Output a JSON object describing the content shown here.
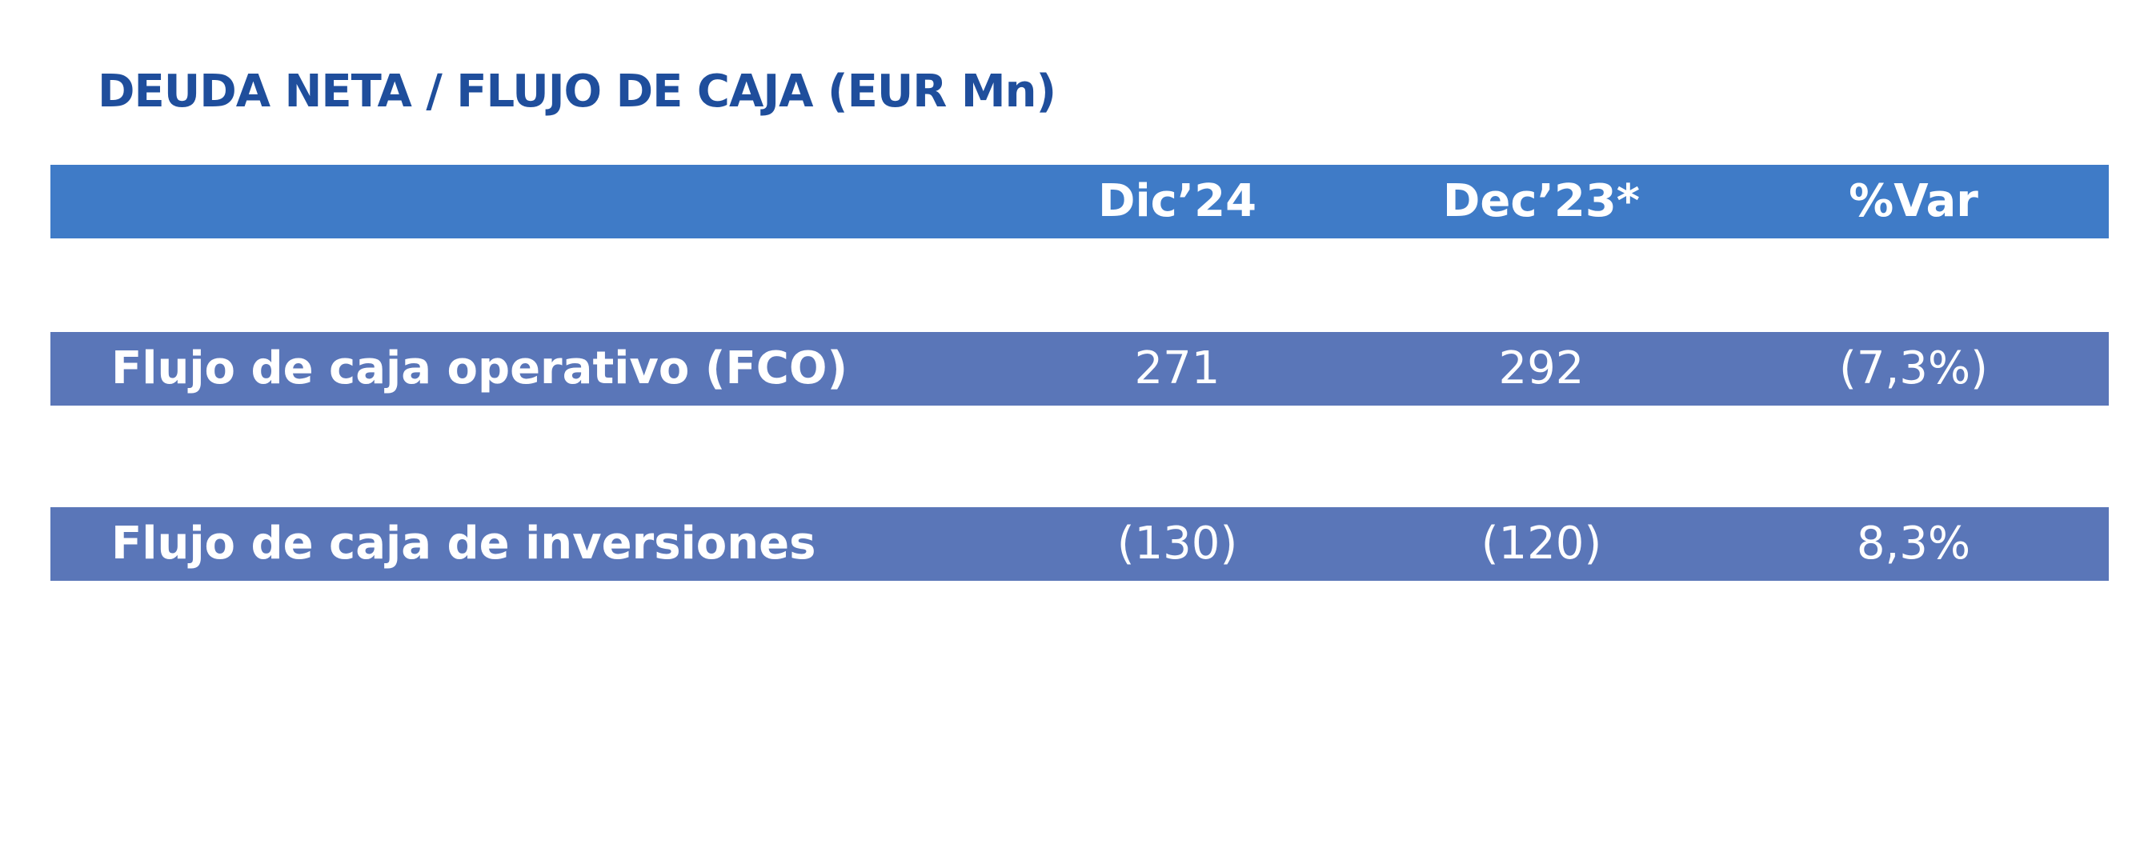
{
  "title": "DEUDA NETA / FLUJO DE CAJA (EUR Mn)",
  "table": {
    "columns": [
      "Dic’24",
      "Dec’23*",
      "%Var"
    ],
    "rows": [
      [
        "Flujo de caja operativo (FCO)",
        271,
        292,
        "(7,3%)"
      ],
      [
        "Flujo de caja de inversiones",
        "(130)",
        "(120)",
        "8,3%"
      ]
    ]
  }
}
